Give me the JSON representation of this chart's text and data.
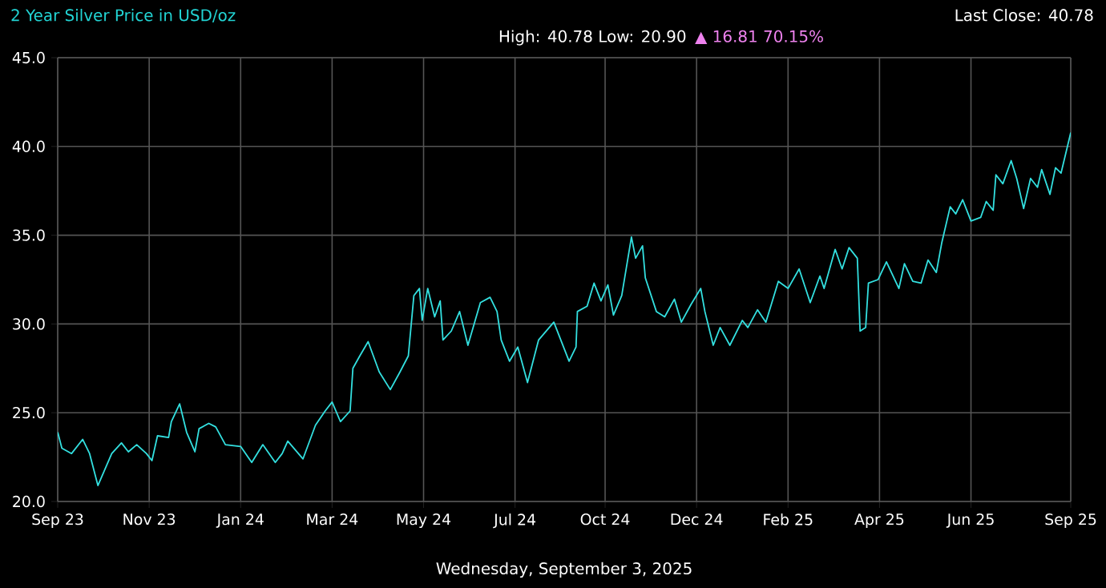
{
  "chart_data": {
    "type": "line",
    "title": "2 Year Silver Price in USD/oz",
    "subtitle": "High: 40.78 Low: 20.90",
    "annotations": [
      "▲ 16.81 70.15%",
      "Last Close: 40.78",
      "Wednesday, September 3, 2025"
    ],
    "grid": true,
    "marker": "none",
    "line_style": "solid",
    "xlim": [
      "2023-09-03",
      "2025-09-03"
    ],
    "xticks": [
      {
        "value": "2023-09-03",
        "label": "Sep 23"
      },
      {
        "value": "2023-11-08",
        "label": "Nov 23"
      },
      {
        "value": "2024-01-13",
        "label": "Jan 24"
      },
      {
        "value": "2024-03-19",
        "label": "Mar 24"
      },
      {
        "value": "2024-05-24",
        "label": "May 24"
      },
      {
        "value": "2024-07-29",
        "label": "Jul 24"
      },
      {
        "value": "2024-10-02",
        "label": "Oct 24"
      },
      {
        "value": "2024-12-07",
        "label": "Dec 24"
      },
      {
        "value": "2025-02-11",
        "label": "Feb 25"
      },
      {
        "value": "2025-04-18",
        "label": "Apr 25"
      },
      {
        "value": "2025-06-23",
        "label": "Jun 25"
      },
      {
        "value": "2025-09-03",
        "label": "Sep 25"
      }
    ],
    "ylim": [
      20,
      45
    ],
    "yticks": [
      {
        "value": 20,
        "label": "20.0"
      },
      {
        "value": 25,
        "label": "25.0"
      },
      {
        "value": 30,
        "label": "30.0"
      },
      {
        "value": 35,
        "label": "35.0"
      },
      {
        "value": 40,
        "label": "40.0"
      },
      {
        "value": 45,
        "label": "45.0"
      }
    ],
    "x": [
      "2023-09-03",
      "2023-09-06",
      "2023-09-13",
      "2023-09-21",
      "2023-09-26",
      "2023-10-02",
      "2023-10-07",
      "2023-10-12",
      "2023-10-19",
      "2023-10-24",
      "2023-10-30",
      "2023-11-06",
      "2023-11-10",
      "2023-11-14",
      "2023-11-22",
      "2023-11-24",
      "2023-11-30",
      "2023-12-05",
      "2023-12-11",
      "2023-12-14",
      "2023-12-21",
      "2023-12-26",
      "2024-01-02",
      "2024-01-13",
      "2024-01-21",
      "2024-01-29",
      "2024-02-07",
      "2024-02-12",
      "2024-02-16",
      "2024-02-27",
      "2024-03-07",
      "2024-03-14",
      "2024-03-19",
      "2024-03-25",
      "2024-04-01",
      "2024-04-03",
      "2024-04-08",
      "2024-04-14",
      "2024-04-22",
      "2024-04-30",
      "2024-05-07",
      "2024-05-13",
      "2024-05-17",
      "2024-05-21",
      "2024-05-23",
      "2024-05-27",
      "2024-06-01",
      "2024-06-05",
      "2024-06-07",
      "2024-06-13",
      "2024-06-19",
      "2024-06-25",
      "2024-07-04",
      "2024-07-11",
      "2024-07-16",
      "2024-07-19",
      "2024-07-25",
      "2024-07-31",
      "2024-08-07",
      "2024-08-15",
      "2024-08-26",
      "2024-09-06",
      "2024-09-11",
      "2024-09-12",
      "2024-09-19",
      "2024-09-24",
      "2024-09-29",
      "2024-10-04",
      "2024-10-08",
      "2024-10-14",
      "2024-10-21",
      "2024-10-24",
      "2024-10-29",
      "2024-10-31",
      "2024-11-08",
      "2024-11-14",
      "2024-11-21",
      "2024-11-26",
      "2024-12-03",
      "2024-12-10",
      "2024-12-13",
      "2024-12-19",
      "2024-12-24",
      "2024-12-31",
      "2025-01-09",
      "2025-01-13",
      "2025-01-20",
      "2025-01-26",
      "2025-02-04",
      "2025-02-11",
      "2025-02-19",
      "2025-02-27",
      "2025-03-06",
      "2025-03-09",
      "2025-03-17",
      "2025-03-22",
      "2025-03-27",
      "2025-04-02",
      "2025-04-04",
      "2025-04-08",
      "2025-04-10",
      "2025-04-17",
      "2025-04-23",
      "2025-05-02",
      "2025-05-06",
      "2025-05-12",
      "2025-05-18",
      "2025-05-23",
      "2025-05-29",
      "2025-06-02",
      "2025-06-08",
      "2025-06-12",
      "2025-06-17",
      "2025-06-23",
      "2025-06-30",
      "2025-07-04",
      "2025-07-09",
      "2025-07-11",
      "2025-07-16",
      "2025-07-22",
      "2025-07-26",
      "2025-07-31",
      "2025-08-05",
      "2025-08-10",
      "2025-08-13",
      "2025-08-19",
      "2025-08-23",
      "2025-08-27",
      "2025-09-03"
    ],
    "series": [
      {
        "color": "#33e0e0",
        "values": [
          23.9,
          23.0,
          22.7,
          23.5,
          22.7,
          20.9,
          21.8,
          22.7,
          23.3,
          22.8,
          23.2,
          22.7,
          22.3,
          23.7,
          23.6,
          24.5,
          25.5,
          23.9,
          22.8,
          24.1,
          24.4,
          24.2,
          23.2,
          23.1,
          22.2,
          23.2,
          22.2,
          22.7,
          23.4,
          22.4,
          24.3,
          25.1,
          25.6,
          24.5,
          25.1,
          27.5,
          28.2,
          29.0,
          27.3,
          26.3,
          27.3,
          28.2,
          31.6,
          32.0,
          30.2,
          32.0,
          30.4,
          31.3,
          29.1,
          29.6,
          30.7,
          28.8,
          31.2,
          31.5,
          30.7,
          29.1,
          27.9,
          28.7,
          26.7,
          29.1,
          30.1,
          27.9,
          28.7,
          30.7,
          31.0,
          32.3,
          31.3,
          32.2,
          30.5,
          31.6,
          34.9,
          33.7,
          34.4,
          32.6,
          30.7,
          30.4,
          31.4,
          30.1,
          31.1,
          32.0,
          30.7,
          28.8,
          29.8,
          28.8,
          30.2,
          29.8,
          30.8,
          30.1,
          32.4,
          32.0,
          33.1,
          31.2,
          32.7,
          32.0,
          34.2,
          33.1,
          34.3,
          33.7,
          29.6,
          29.8,
          32.3,
          32.5,
          33.5,
          32.0,
          33.4,
          32.4,
          32.3,
          33.6,
          32.9,
          34.6,
          36.6,
          36.2,
          37.0,
          35.8,
          36.0,
          36.9,
          36.4,
          38.4,
          37.9,
          39.2,
          38.2,
          36.5,
          38.2,
          37.7,
          38.7,
          37.3,
          38.8,
          38.5,
          40.78
        ]
      }
    ]
  }
}
